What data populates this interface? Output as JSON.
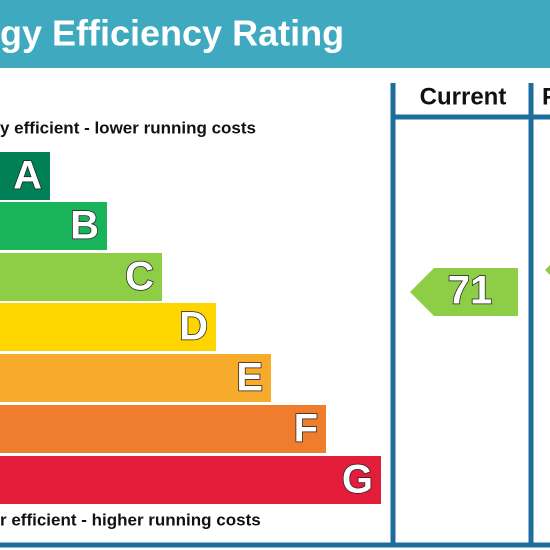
{
  "header": {
    "title": "gy Efficiency Rating"
  },
  "top_note": "y efficient - lower running costs",
  "bottom_note": "r efficient - higher running costs",
  "columns": [
    "Current",
    "P"
  ],
  "bands": [
    {
      "letter": "A",
      "color": "#008054"
    },
    {
      "letter": "B",
      "color": "#19b459"
    },
    {
      "letter": "C",
      "color": "#8dce46"
    },
    {
      "letter": "D",
      "color": "#ffd500"
    },
    {
      "letter": "E",
      "color": "#f6ac2a"
    },
    {
      "letter": "F",
      "color": "#ef7d2d"
    },
    {
      "letter": "G",
      "color": "#e31d3a"
    }
  ],
  "current": {
    "value": "71",
    "color": "#8dce46"
  }
}
